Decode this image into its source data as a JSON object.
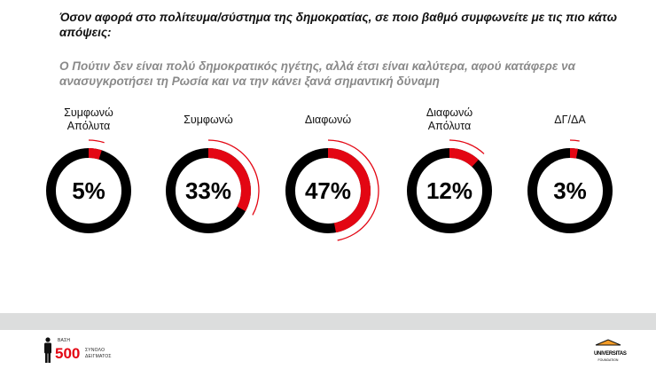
{
  "question": "Όσον αφορά στο πολίτευμα/σύστημα της δημοκρατίας, σε ποιο βαθμό συμφωνείτε με τις πιο κάτω απόψεις:",
  "statement": "Ο Πούτιν δεν είναι πολύ δημοκρατικός ηγέτης, αλλά έτσι είναι καλύτερα, αφού κατάφερε να ανασυγκροτήσει τη Ρωσία και να την κάνει ξανά σημαντική δύναμη",
  "chart_data": {
    "type": "donut",
    "unit": "%",
    "categories": [
      "Συμφωνώ Απόλυτα",
      "Συμφωνώ",
      "Διαφωνώ",
      "Διαφωνώ Απόλυτα",
      "ΔΓ/ΔΑ"
    ],
    "values": [
      5,
      33,
      47,
      12,
      3
    ],
    "value_labels": [
      "5%",
      "33%",
      "47%",
      "12%",
      "3%"
    ]
  },
  "colors": {
    "highlight": "#e30613",
    "base": "#000000"
  },
  "footer": {
    "base_label": "ΒΑΣΗ",
    "sample_size": "500",
    "sample_label_1": "ΣΥΝΟΛΟ",
    "sample_label_2": "ΔΕΙΓΜΑΤΟΣ",
    "logo_text": "UNIVERSITAS",
    "logo_sub": "FOUNDATION"
  }
}
